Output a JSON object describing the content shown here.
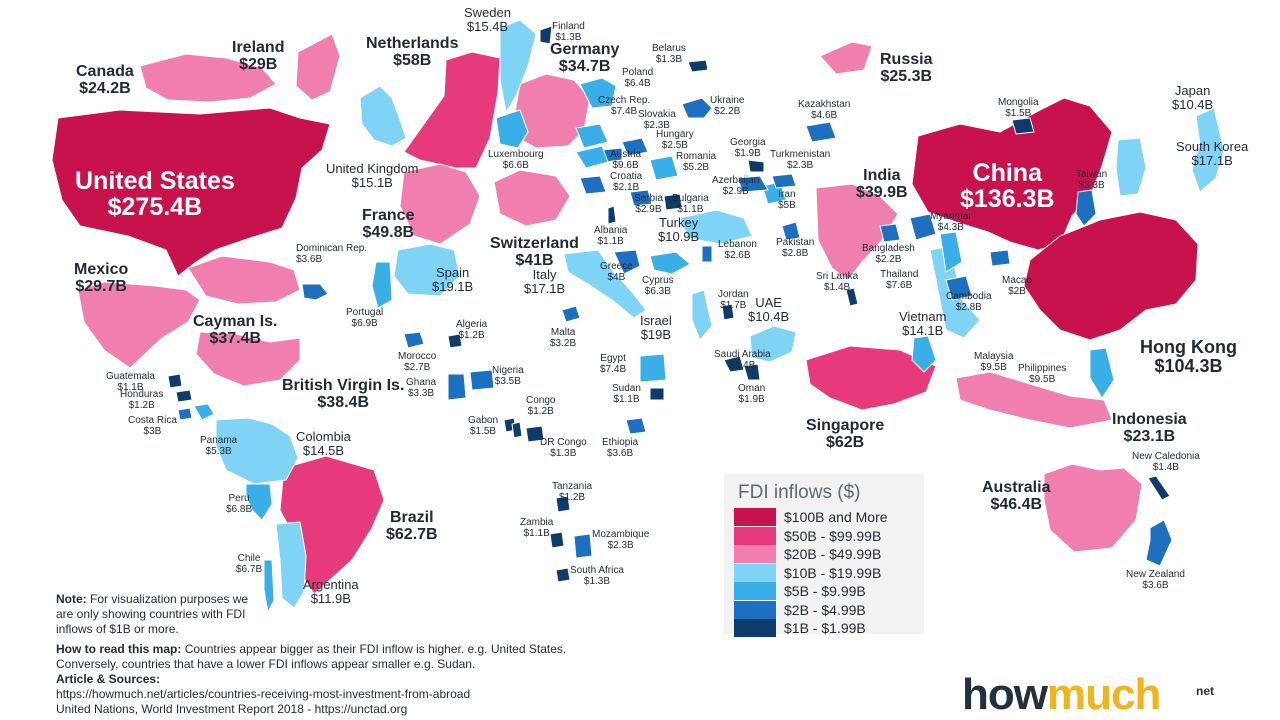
{
  "colors": {
    "t100": "#c8124e",
    "t50": "#e63a7c",
    "t20": "#f07fb0",
    "t10": "#7fd3f5",
    "t5": "#3aaee6",
    "t2": "#1d6fbf",
    "t1": "#0f3b6b"
  },
  "legend": {
    "title": "FDI inflows ($)",
    "items": [
      {
        "label": "$100B and More",
        "tier": "t100"
      },
      {
        "label": "$50B - $99.99B",
        "tier": "t50"
      },
      {
        "label": "$20B - $49.99B",
        "tier": "t20"
      },
      {
        "label": "$10B - $19.99B",
        "tier": "t10"
      },
      {
        "label": "$5B - $9.99B",
        "tier": "t5"
      },
      {
        "label": "$2B - $4.99B",
        "tier": "t2"
      },
      {
        "label": "$1B - $1.99B",
        "tier": "t1"
      }
    ]
  },
  "countries": [
    {
      "name": "United States",
      "value": "$275.4B",
      "tier": "t100"
    },
    {
      "name": "China",
      "value": "$136.3B",
      "tier": "t100"
    },
    {
      "name": "Hong Kong",
      "value": "$104.3B",
      "tier": "t100"
    },
    {
      "name": "Brazil",
      "value": "$62.7B",
      "tier": "t50"
    },
    {
      "name": "Singapore",
      "value": "$62B",
      "tier": "t50"
    },
    {
      "name": "Netherlands",
      "value": "$58B",
      "tier": "t50"
    },
    {
      "name": "France",
      "value": "$49.8B",
      "tier": "t20"
    },
    {
      "name": "Australia",
      "value": "$46.4B",
      "tier": "t20"
    },
    {
      "name": "Switzerland",
      "value": "$41B",
      "tier": "t20"
    },
    {
      "name": "India",
      "value": "$39.9B",
      "tier": "t20"
    },
    {
      "name": "British Virgin Is.",
      "value": "$38.4B",
      "tier": "t20"
    },
    {
      "name": "Cayman Is.",
      "value": "$37.4B",
      "tier": "t20"
    },
    {
      "name": "Germany",
      "value": "$34.7B",
      "tier": "t20"
    },
    {
      "name": "Mexico",
      "value": "$29.7B",
      "tier": "t20"
    },
    {
      "name": "Ireland",
      "value": "$29B",
      "tier": "t20"
    },
    {
      "name": "Russia",
      "value": "$25.3B",
      "tier": "t20"
    },
    {
      "name": "Canada",
      "value": "$24.2B",
      "tier": "t20"
    },
    {
      "name": "Indonesia",
      "value": "$23.1B",
      "tier": "t20"
    },
    {
      "name": "Spain",
      "value": "$19.1B",
      "tier": "t10"
    },
    {
      "name": "Israel",
      "value": "$19B",
      "tier": "t10"
    },
    {
      "name": "Italy",
      "value": "$17.1B",
      "tier": "t10"
    },
    {
      "name": "South Korea",
      "value": "$17.1B",
      "tier": "t10"
    },
    {
      "name": "Sweden",
      "value": "$15.4B",
      "tier": "t10"
    },
    {
      "name": "United Kingdom",
      "value": "$15.1B",
      "tier": "t10"
    },
    {
      "name": "Colombia",
      "value": "$14.5B",
      "tier": "t10"
    },
    {
      "name": "Vietnam",
      "value": "$14.1B",
      "tier": "t10"
    },
    {
      "name": "Argentina",
      "value": "$11.9B",
      "tier": "t10"
    },
    {
      "name": "Turkey",
      "value": "$10.9B",
      "tier": "t10"
    },
    {
      "name": "UAE",
      "value": "$10.4B",
      "tier": "t10"
    },
    {
      "name": "Japan",
      "value": "$10.4B",
      "tier": "t10"
    },
    {
      "name": "Philippines",
      "value": "$9.5B",
      "tier": "t5"
    },
    {
      "name": "Malaysia",
      "value": "$9.5B",
      "tier": "t5"
    },
    {
      "name": "Czech Rep.",
      "value": "$7.4B",
      "tier": "t5"
    },
    {
      "name": "Egypt",
      "value": "$7.4B",
      "tier": "t5"
    },
    {
      "name": "Thailand",
      "value": "$7.6B",
      "tier": "t5"
    },
    {
      "name": "Portugal",
      "value": "$6.9B",
      "tier": "t5"
    },
    {
      "name": "Peru",
      "value": "$6.8B",
      "tier": "t5"
    },
    {
      "name": "Chile",
      "value": "$6.7B",
      "tier": "t5"
    },
    {
      "name": "Luxembourg",
      "value": "$6.6B",
      "tier": "t5"
    },
    {
      "name": "Poland",
      "value": "$6.4B",
      "tier": "t5"
    },
    {
      "name": "Cyprus",
      "value": "$6.3B",
      "tier": "t5"
    },
    {
      "name": "Panama",
      "value": "$5.3B",
      "tier": "t5"
    },
    {
      "name": "Romania",
      "value": "$5.2B",
      "tier": "t5"
    },
    {
      "name": "Iran",
      "value": "$5B",
      "tier": "t5"
    },
    {
      "name": "Kazakhstan",
      "value": "$4.6B",
      "tier": "t2"
    },
    {
      "name": "Myanmar",
      "value": "$4.3B",
      "tier": "t2"
    },
    {
      "name": "Greece",
      "value": "$4B",
      "tier": "t2"
    },
    {
      "name": "Dominican Rep.",
      "value": "$3.6B",
      "tier": "t2"
    },
    {
      "name": "Ethiopia",
      "value": "$3.6B",
      "tier": "t2"
    },
    {
      "name": "New Zealand",
      "value": "$3.6B",
      "tier": "t2"
    },
    {
      "name": "Nigeria",
      "value": "$3.5B",
      "tier": "t2"
    },
    {
      "name": "Taiwan",
      "value": "$3.3B",
      "tier": "t2"
    },
    {
      "name": "Ghana",
      "value": "$3.3B",
      "tier": "t2"
    },
    {
      "name": "Malta",
      "value": "$3.2B",
      "tier": "t2"
    },
    {
      "name": "Costa Rica",
      "value": "$3B",
      "tier": "t2"
    },
    {
      "name": "Serbia",
      "value": "$2.9B",
      "tier": "t2"
    },
    {
      "name": "Azerbaijan",
      "value": "$2.9B",
      "tier": "t2"
    },
    {
      "name": "Cambodia",
      "value": "$2.8B",
      "tier": "t2"
    },
    {
      "name": "Pakistan",
      "value": "$2.8B",
      "tier": "t2"
    },
    {
      "name": "Morocco",
      "value": "$2.7B",
      "tier": "t2"
    },
    {
      "name": "Lebanon",
      "value": "$2.6B",
      "tier": "t2"
    },
    {
      "name": "Hungary",
      "value": "$2.5B",
      "tier": "t2"
    },
    {
      "name": "Slovakia",
      "value": "$2.3B",
      "tier": "t2"
    },
    {
      "name": "Turkmenistan",
      "value": "$2.3B",
      "tier": "t2"
    },
    {
      "name": "Mozambique",
      "value": "$2.3B",
      "tier": "t2"
    },
    {
      "name": "Ukraine",
      "value": "$2.2B",
      "tier": "t2"
    },
    {
      "name": "Bangladesh",
      "value": "$2.2B",
      "tier": "t2"
    },
    {
      "name": "Croatia",
      "value": "$2.1B",
      "tier": "t2"
    },
    {
      "name": "Macao",
      "value": "$2B",
      "tier": "t2"
    },
    {
      "name": "Georgia",
      "value": "$1.9B",
      "tier": "t1"
    },
    {
      "name": "Oman",
      "value": "$1.9B",
      "tier": "t1"
    },
    {
      "name": "Jordan",
      "value": "$1.7B",
      "tier": "t1"
    },
    {
      "name": "Mongolia",
      "value": "$1.5B",
      "tier": "t1"
    },
    {
      "name": "Gabon",
      "value": "$1.5B",
      "tier": "t1"
    },
    {
      "name": "Sri Lanka",
      "value": "$1.4B",
      "tier": "t1"
    },
    {
      "name": "Saudi Arabia",
      "value": "$1.4B",
      "tier": "t1"
    },
    {
      "name": "New Caledonia",
      "value": "$1.4B",
      "tier": "t1"
    },
    {
      "name": "Finland",
      "value": "$1.3B",
      "tier": "t1"
    },
    {
      "name": "Belarus",
      "value": "$1.3B",
      "tier": "t1"
    },
    {
      "name": "DR Congo",
      "value": "$1.3B",
      "tier": "t1"
    },
    {
      "name": "South Africa",
      "value": "$1.3B",
      "tier": "t1"
    },
    {
      "name": "Algeria",
      "value": "$1.2B",
      "tier": "t1"
    },
    {
      "name": "Congo",
      "value": "$1.2B",
      "tier": "t1"
    },
    {
      "name": "Tanzania",
      "value": "$1.2B",
      "tier": "t1"
    },
    {
      "name": "Honduras",
      "value": "$1.2B",
      "tier": "t1"
    },
    {
      "name": "Guatemala",
      "value": "$1.1B",
      "tier": "t1"
    },
    {
      "name": "Albania",
      "value": "$1.1B",
      "tier": "t1"
    },
    {
      "name": "Bulgaria",
      "value": "$1.1B",
      "tier": "t1"
    },
    {
      "name": "Sudan",
      "value": "$1.1B",
      "tier": "t1"
    },
    {
      "name": "Zambia",
      "value": "$1.1B",
      "tier": "t1"
    },
    {
      "name": "Austria",
      "value": "$9.6B",
      "tier": "t5"
    }
  ],
  "notes": {
    "note_label": "Note:",
    "note_text": "For visualization purposes we are only showing countries with FDI inflows of $1B or more.",
    "howto_label": "How to read this map:",
    "howto_text": "Countries appear bigger as their FDI inflow is higher. e.g. United States. Conversely, countries that have a lower FDI inflows appear smaller e.g. Sudan.",
    "sources_label": "Article & Sources:",
    "source1": "https://howmuch.net/articles/countries-receiving-most-investment-from-abroad",
    "source2": "United Nations, World Investment Report 2018 - https://unctad.org"
  },
  "brand": {
    "part1": "how",
    "part2": "much",
    "suffix": "net"
  }
}
